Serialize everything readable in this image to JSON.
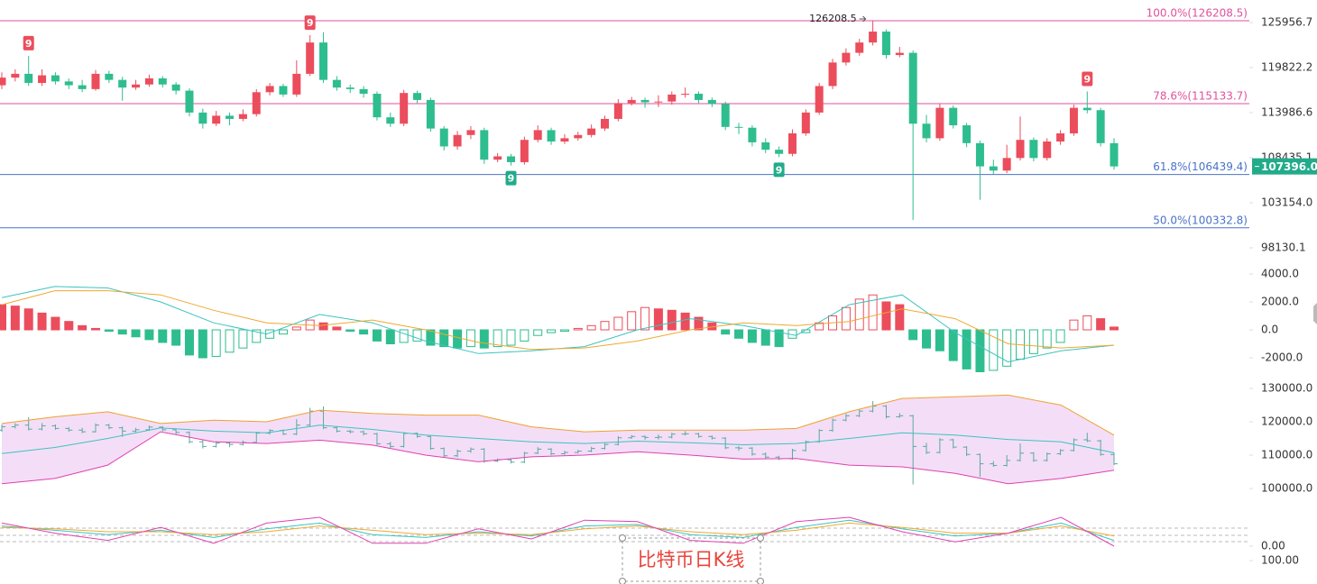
{
  "chart_data": [
    {
      "type": "candlestick",
      "log": true,
      "up_color": "#eb4d5c",
      "down_color": "#2ebd8f",
      "ylim": [
        97155,
        129141
      ],
      "yticks": [
        125956.7,
        119822.2,
        113986.6,
        108435.1,
        {
          "value": 103154,
          "label": "103154.0"
        },
        98130.1
      ],
      "ohlc": [
        [
          117500,
          119200,
          117000,
          118500
        ],
        [
          118500,
          119600,
          118000,
          119000
        ],
        [
          119000,
          121400,
          117400,
          117800
        ],
        [
          117800,
          119600,
          117400,
          118800
        ],
        [
          118800,
          119200,
          117600,
          118000
        ],
        [
          118000,
          118400,
          117000,
          117500
        ],
        [
          117500,
          118200,
          116600,
          117000
        ],
        [
          117000,
          119500,
          116800,
          119000
        ],
        [
          119000,
          119400,
          117800,
          118200
        ],
        [
          118200,
          118600,
          115500,
          117200
        ],
        [
          117200,
          118200,
          116900,
          117600
        ],
        [
          117600,
          118900,
          117300,
          118400
        ],
        [
          118400,
          118700,
          117200,
          117600
        ],
        [
          117600,
          117900,
          116300,
          116800
        ],
        [
          116800,
          117100,
          113500,
          114000
        ],
        [
          114000,
          114500,
          112000,
          112600
        ],
        [
          112600,
          114200,
          112300,
          113600
        ],
        [
          113600,
          114000,
          112400,
          113200
        ],
        [
          113200,
          114400,
          112900,
          113800
        ],
        [
          113800,
          117000,
          113500,
          116600
        ],
        [
          116600,
          117800,
          116200,
          117400
        ],
        [
          117400,
          117700,
          116000,
          116300
        ],
        [
          116300,
          120800,
          116000,
          119000
        ],
        [
          119000,
          124200,
          118700,
          123200
        ],
        [
          123200,
          124600,
          117800,
          118200
        ],
        [
          118200,
          118700,
          116800,
          117200
        ],
        [
          117200,
          117600,
          116500,
          117000
        ],
        [
          117000,
          117400,
          115900,
          116400
        ],
        [
          116400,
          116700,
          113000,
          113400
        ],
        [
          113400,
          114000,
          112200,
          112600
        ],
        [
          112600,
          116900,
          112300,
          116500
        ],
        [
          116500,
          116800,
          115200,
          115600
        ],
        [
          115600,
          115900,
          111600,
          112000
        ],
        [
          112000,
          112300,
          109300,
          109800
        ],
        [
          109800,
          111700,
          109400,
          111200
        ],
        [
          111200,
          112300,
          110700,
          111800
        ],
        [
          111800,
          112100,
          107700,
          108200
        ],
        [
          108200,
          109000,
          107900,
          108600
        ],
        [
          108600,
          108900,
          107500,
          107900
        ],
        [
          107900,
          111000,
          107600,
          110600
        ],
        [
          110600,
          112400,
          110300,
          111800
        ],
        [
          111800,
          112100,
          110000,
          110400
        ],
        [
          110400,
          111300,
          110100,
          110800
        ],
        [
          110800,
          111600,
          110500,
          111200
        ],
        [
          111200,
          112500,
          110900,
          112000
        ],
        [
          112000,
          113600,
          111700,
          113200
        ],
        [
          113200,
          115700,
          112900,
          115200
        ],
        [
          115200,
          116000,
          114900,
          115600
        ],
        [
          115600,
          115900,
          114600,
          115300
        ],
        [
          115300,
          116200,
          114700,
          115400
        ],
        [
          115400,
          116700,
          115000,
          116300
        ],
        [
          116300,
          117200,
          115900,
          116400
        ],
        [
          116400,
          116700,
          115200,
          115600
        ],
        [
          115600,
          115900,
          114700,
          115100
        ],
        [
          115100,
          115400,
          111800,
          112200
        ],
        [
          112200,
          112700,
          111300,
          112100
        ],
        [
          112100,
          112400,
          109800,
          110300
        ],
        [
          110300,
          110800,
          109000,
          109400
        ],
        [
          109400,
          109800,
          108500,
          108900
        ],
        [
          108900,
          111900,
          108600,
          111400
        ],
        [
          111400,
          114400,
          111100,
          114000
        ],
        [
          114000,
          117800,
          113700,
          117400
        ],
        [
          117400,
          121000,
          117000,
          120500
        ],
        [
          120500,
          122400,
          120100,
          121800
        ],
        [
          121800,
          123700,
          121400,
          123200
        ],
        [
          123200,
          126208.5,
          122800,
          124700
        ],
        [
          124700,
          125000,
          121000,
          121500
        ],
        [
          121500,
          122600,
          121200,
          121800
        ],
        [
          121800,
          122100,
          101200,
          112600
        ],
        [
          112600,
          113700,
          110300,
          110800
        ],
        [
          110800,
          115100,
          110500,
          114600
        ],
        [
          114600,
          114900,
          112000,
          112400
        ],
        [
          112400,
          112700,
          109700,
          110200
        ],
        [
          110200,
          110500,
          103500,
          107400
        ],
        [
          107400,
          108200,
          106500,
          106900
        ],
        [
          106900,
          110000,
          106600,
          108400
        ],
        [
          108400,
          113500,
          108100,
          110600
        ],
        [
          110600,
          110900,
          108000,
          108400
        ],
        [
          108400,
          110800,
          108100,
          110400
        ],
        [
          110400,
          111800,
          110000,
          111400
        ],
        [
          111400,
          115000,
          111100,
          114600
        ],
        [
          114600,
          116700,
          113900,
          114300
        ],
        [
          114300,
          114600,
          109800,
          110200
        ],
        [
          110200,
          110800,
          107000,
          107396
        ]
      ],
      "fib_levels": [
        {
          "value": 126208.5,
          "label": "100.0%(126208.5)",
          "color": "#e0529c"
        },
        {
          "value": 115133.7,
          "label": "78.6%(115133.7)",
          "color": "#e0529c"
        },
        {
          "value": 106439.4,
          "label": "61.8%(106439.4)",
          "color": "#4a72c8"
        },
        {
          "value": 100332.8,
          "label": "50.0%(100332.8)",
          "color": "#4a72c8"
        }
      ],
      "last_price": {
        "value": 107396,
        "label": "107396.0",
        "color": "#22ab8a"
      },
      "high_label": {
        "value": 126208.5,
        "label": "126208.5"
      },
      "markers": [
        {
          "label": "9",
          "color": "#eb4d5c",
          "position": "above"
        },
        {
          "label": "9",
          "color": "#eb4d5c",
          "position": "above"
        },
        {
          "label": "9",
          "color": "#eb4d5c",
          "position": "above"
        },
        {
          "label": "9",
          "color": "#22ab8a",
          "position": "below"
        },
        {
          "label": "9",
          "color": "#22ab8a",
          "position": "below"
        }
      ]
    },
    {
      "type": "macd",
      "ylim": [
        -3484,
        4903
      ],
      "up_color": "#eb4d5c",
      "down_color": "#2ebd8f",
      "yticks": [
        {
          "value": 4000,
          "label": "4000.0"
        },
        {
          "value": 2000,
          "label": "2000.0"
        },
        {
          "value": 0,
          "label": "0.0"
        },
        {
          "value": -2000,
          "label": "-2000.0"
        }
      ],
      "values": [
        1800,
        1700,
        1500,
        1200,
        900,
        600,
        300,
        100,
        -100,
        -300,
        -500,
        -700,
        -900,
        -1100,
        -1800,
        -2000,
        -1900,
        -1600,
        -1300,
        -900,
        -600,
        -300,
        200,
        700,
        500,
        200,
        -100,
        -300,
        -800,
        -1000,
        -900,
        -800,
        -1100,
        -1200,
        -1300,
        -1200,
        -1300,
        -1200,
        -1100,
        -800,
        -400,
        -200,
        -100,
        100,
        300,
        600,
        900,
        1300,
        1600,
        1500,
        1400,
        1200,
        900,
        500,
        -300,
        -600,
        -900,
        -1100,
        -1200,
        -600,
        -200,
        500,
        1000,
        1600,
        2200,
        2500,
        2000,
        1800,
        -700,
        -1300,
        -1500,
        -2200,
        -2800,
        -3000,
        -2900,
        -2600,
        -2100,
        -1700,
        -1300,
        -900,
        700,
        1000,
        800,
        200
      ],
      "series": [
        {
          "color": "#3cc3c0",
          "values": [
            2300,
            3100,
            3000,
            2000,
            500,
            -300,
            1100,
            500,
            -800,
            -1700,
            -1500,
            -1200,
            0,
            800,
            300,
            -400,
            1800,
            2500,
            -200,
            -2300,
            -1500,
            -1100
          ]
        },
        {
          "color": "#f0a830",
          "values": [
            1800,
            2800,
            2800,
            2500,
            1400,
            500,
            300,
            700,
            0,
            -900,
            -1400,
            -1300,
            -800,
            0,
            500,
            300,
            600,
            1500,
            800,
            -1000,
            -1300,
            -1100
          ]
        }
      ]
    },
    {
      "type": "bollinger",
      "ylim": [
        95135,
        131622
      ],
      "fill": "#f4def7",
      "bar_color": "#5aa8a0",
      "yticks": [
        {
          "value": 130000,
          "label": "130000.0"
        },
        {
          "value": 120000,
          "label": "120000.0"
        },
        {
          "value": 110000,
          "label": "110000.0"
        },
        {
          "value": 100000,
          "label": "100000.0"
        }
      ],
      "series": [
        {
          "color": "#f0a030",
          "values": [
            119500,
            121500,
            123000,
            119500,
            120500,
            120000,
            123500,
            122500,
            122000,
            122000,
            118500,
            117000,
            117500,
            117500,
            117500,
            118000,
            123000,
            127000,
            127500,
            128000,
            125000,
            116000
          ]
        },
        {
          "color": "#3cc3c0",
          "values": [
            110500,
            112300,
            115000,
            118200,
            117200,
            116700,
            119000,
            117700,
            116000,
            115000,
            114000,
            113500,
            114200,
            113700,
            113100,
            113500,
            115000,
            116700,
            116000,
            114700,
            114000,
            110700
          ]
        },
        {
          "color": "#e040b0",
          "values": [
            101400,
            103000,
            107000,
            117000,
            114000,
            113500,
            114500,
            113000,
            110000,
            108000,
            109500,
            110000,
            111000,
            110000,
            108800,
            109000,
            107000,
            106500,
            104500,
            101400,
            103000,
            105500
          ]
        }
      ]
    },
    {
      "type": "line",
      "ylim": [
        0,
        100
      ],
      "yticks": [
        {
          "value": 0,
          "label": "0.00"
        }
      ],
      "series": [
        {
          "color": "#3cc3c0",
          "values": [
            70,
            55,
            40,
            55,
            30,
            60,
            80,
            40,
            30,
            50,
            35,
            70,
            75,
            40,
            30,
            65,
            90,
            60,
            35,
            45,
            80,
            20
          ]
        },
        {
          "color": "#f0a830",
          "values": [
            65,
            60,
            50,
            50,
            40,
            50,
            70,
            55,
            40,
            45,
            40,
            60,
            70,
            50,
            40,
            55,
            80,
            65,
            45,
            45,
            70,
            35
          ]
        },
        {
          "color": "#e040b0",
          "values": [
            80,
            45,
            20,
            65,
            10,
            80,
            100,
            10,
            10,
            60,
            25,
            90,
            85,
            20,
            10,
            85,
            100,
            50,
            15,
            45,
            100,
            0
          ]
        }
      ]
    },
    {
      "type": "line",
      "ylim": [
        0,
        100
      ],
      "yticks": [
        {
          "value": 100,
          "label": "100.00"
        }
      ],
      "series": []
    }
  ],
  "annotation": "比特币日K线"
}
